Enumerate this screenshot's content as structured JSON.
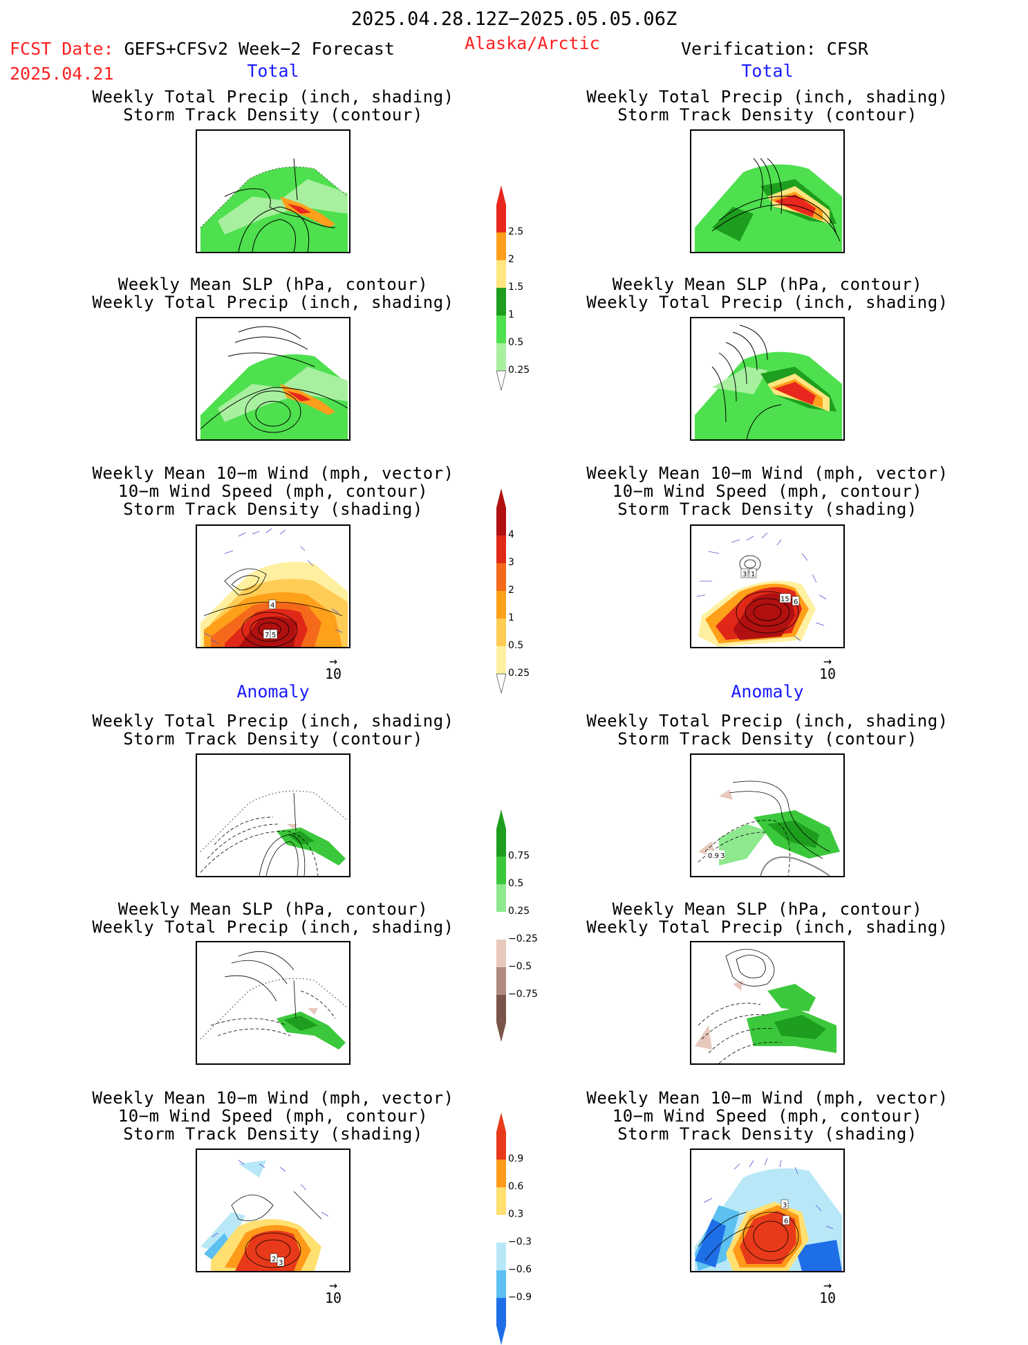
{
  "header": {
    "date_range": "2025.04.28.12Z−2025.05.05.06Z",
    "fcst_prefix": "FCST Date:",
    "fcst_model": "GEFS+CFSv2 Week−2 Forecast",
    "fcst_date": "2025.04.21",
    "region": "Alaska/Arctic",
    "verification": "Verification: CFSR"
  },
  "sections": {
    "total": "Total",
    "anomaly": "Anomaly"
  },
  "panel_titles": {
    "precip_storm": [
      "Weekly Total Precip (inch, shading)",
      "Storm Track Density (contour)"
    ],
    "slp_precip": [
      "Weekly Mean SLP (hPa, contour)",
      "Weekly Total Precip (inch, shading)"
    ],
    "wind_storm": [
      "Weekly Mean 10−m Wind (mph, vector)",
      "10−m Wind Speed (mph, contour)",
      "Storm Track Density (shading)"
    ]
  },
  "colorbars": {
    "precip_total": {
      "labels": [
        "2.5",
        "2",
        "1.5",
        "1",
        "0.5",
        "0.25"
      ],
      "colors": [
        "#e8281e",
        "#ff9f1c",
        "#ffe680",
        "#1e9e1e",
        "#4ee04e",
        "#a8f0a0"
      ]
    },
    "storm_total": {
      "labels": [
        "4",
        "3",
        "2",
        "1",
        "0.5",
        "0.25"
      ],
      "colors": [
        "#b01010",
        "#e02818",
        "#f56a1a",
        "#ffa01a",
        "#ffcc55",
        "#fff0a0"
      ]
    },
    "precip_anom": {
      "labels": [
        "0.75",
        "0.5",
        "0.25",
        "−0.25",
        "−0.5",
        "−0.75"
      ],
      "colors": [
        "#1e9e1e",
        "#3cc83c",
        "#8ee88e",
        "#ffffff",
        "#e8c8bc",
        "#b08a80",
        "#7a5448"
      ]
    },
    "storm_anom": {
      "labels": [
        "0.9",
        "0.6",
        "0.3",
        "−0.3",
        "−0.6",
        "−0.9"
      ],
      "colors": [
        "#e83a1a",
        "#ff9a1a",
        "#ffe070",
        "#ffffff",
        "#b8e8f8",
        "#5cc0f0",
        "#1e6ee8"
      ]
    }
  },
  "vector_ref": {
    "label": "10",
    "arrow": "→"
  },
  "panel_labels": {
    "fcst_wind_total": [
      "4",
      "7",
      "5"
    ],
    "cfsr_wind_total": [
      "1",
      "3",
      "15",
      "6"
    ],
    "cfsr_precip_anom": [
      "0.9",
      "3"
    ],
    "fcst_wind_anom": [
      "2",
      "3"
    ],
    "cfsr_wind_anom": [
      "3",
      "6"
    ]
  }
}
